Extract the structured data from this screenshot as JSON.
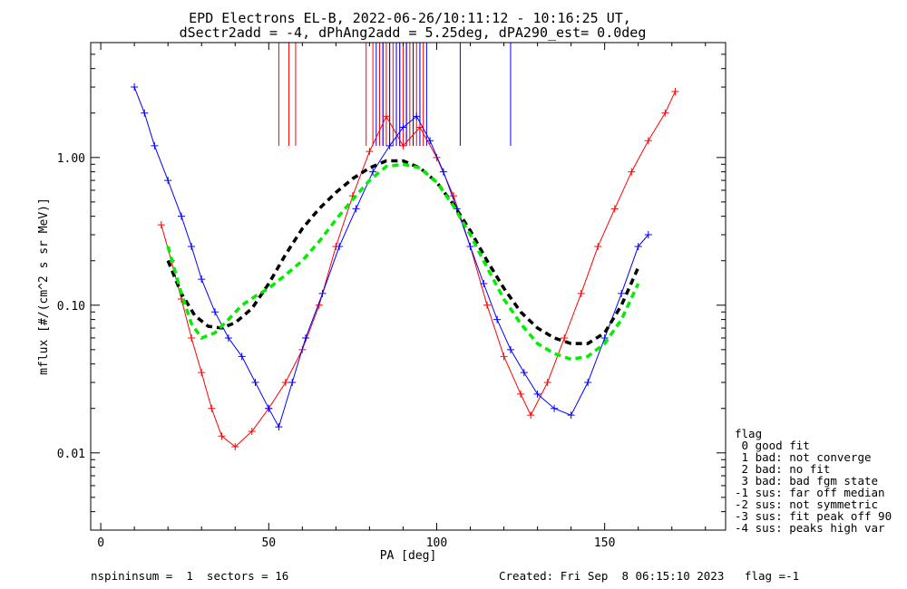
{
  "chart_data": {
    "type": "line",
    "title": "EPD Electrons EL-B, 2022-06-26/10:11:12 - 10:16:25 UT,",
    "subtitle": "dSectr2add = -4, dPhAng2add = 5.25deg, dPA290_est=   0.0deg",
    "xlabel": "PA [deg]",
    "ylabel": "mflux [#/(cm^2 s sr MeV)]",
    "xlim": [
      -3,
      186
    ],
    "ylim": [
      0.003,
      6.0
    ],
    "yscale": "log",
    "grid": false,
    "x_ticks": [
      0,
      50,
      100,
      150
    ],
    "x_tick_labels": [
      "0",
      "50",
      "100",
      "150"
    ],
    "y_ticks": [
      0.01,
      0.1,
      1.0
    ],
    "y_tick_labels": [
      "0.01",
      "0.10",
      "1.00"
    ],
    "series": [
      {
        "color": "#ff0000",
        "style": "thin solid with plus markers",
        "x": [
          18,
          21,
          24,
          27,
          30,
          33,
          36,
          40,
          45,
          50,
          55,
          60,
          65,
          70,
          75,
          80,
          85,
          90,
          95,
          100,
          105,
          110,
          115,
          120,
          125,
          128,
          133,
          138,
          143,
          148,
          153,
          158,
          163,
          168,
          171
        ],
        "y": [
          0.35,
          0.2,
          0.11,
          0.06,
          0.035,
          0.02,
          0.013,
          0.011,
          0.014,
          0.02,
          0.03,
          0.05,
          0.1,
          0.25,
          0.55,
          1.1,
          1.9,
          1.2,
          1.6,
          1.0,
          0.55,
          0.25,
          0.1,
          0.045,
          0.025,
          0.018,
          0.03,
          0.06,
          0.12,
          0.25,
          0.45,
          0.8,
          1.3,
          2.0,
          2.8
        ]
      },
      {
        "color": "#0000ff",
        "style": "thin solid with plus markers",
        "x": [
          10,
          13,
          16,
          20,
          24,
          27,
          30,
          34,
          38,
          42,
          46,
          50,
          53,
          57,
          61,
          66,
          71,
          76,
          81,
          86,
          90,
          94,
          98,
          102,
          106,
          110,
          114,
          118,
          122,
          126,
          130,
          135,
          140,
          145,
          150,
          155,
          160,
          163
        ],
        "y": [
          3.0,
          2.0,
          1.2,
          0.7,
          0.4,
          0.25,
          0.15,
          0.09,
          0.06,
          0.045,
          0.03,
          0.02,
          0.015,
          0.03,
          0.06,
          0.12,
          0.25,
          0.45,
          0.8,
          1.2,
          1.6,
          1.9,
          1.3,
          0.8,
          0.45,
          0.25,
          0.14,
          0.08,
          0.05,
          0.035,
          0.025,
          0.02,
          0.018,
          0.03,
          0.06,
          0.12,
          0.25,
          0.3
        ]
      },
      {
        "color": "#000000",
        "style": "thick dashed",
        "x": [
          20,
          24,
          28,
          32,
          36,
          40,
          45,
          50,
          55,
          60,
          65,
          70,
          75,
          80,
          85,
          90,
          95,
          100,
          105,
          110,
          115,
          120,
          125,
          130,
          135,
          140,
          145,
          150,
          155,
          160
        ],
        "y": [
          0.2,
          0.12,
          0.085,
          0.072,
          0.07,
          0.076,
          0.095,
          0.14,
          0.22,
          0.33,
          0.45,
          0.58,
          0.72,
          0.85,
          0.95,
          0.95,
          0.85,
          0.68,
          0.48,
          0.32,
          0.2,
          0.13,
          0.09,
          0.07,
          0.06,
          0.055,
          0.055,
          0.065,
          0.1,
          0.18
        ]
      },
      {
        "color": "#00ee00",
        "style": "thick dashed",
        "x": [
          20,
          24,
          27,
          30,
          34,
          38,
          42,
          46,
          50,
          55,
          60,
          65,
          70,
          75,
          80,
          85,
          90,
          95,
          100,
          105,
          110,
          115,
          120,
          125,
          130,
          135,
          140,
          145,
          150,
          155,
          160
        ],
        "y": [
          0.25,
          0.12,
          0.075,
          0.06,
          0.065,
          0.08,
          0.1,
          0.115,
          0.13,
          0.16,
          0.2,
          0.27,
          0.38,
          0.52,
          0.7,
          0.87,
          0.9,
          0.85,
          0.68,
          0.47,
          0.3,
          0.18,
          0.11,
          0.075,
          0.055,
          0.047,
          0.043,
          0.045,
          0.055,
          0.08,
          0.14
        ]
      }
    ],
    "vertical_lines": [
      {
        "color": "#ff0000",
        "x": [
          53,
          56,
          58,
          79,
          81,
          83,
          84,
          85,
          86,
          87,
          88,
          89,
          90,
          91,
          92,
          93,
          94,
          95,
          96
        ],
        "y_bottom": 1.2
      },
      {
        "color": "#0000ff",
        "x": [
          82,
          84,
          86,
          88,
          89,
          91,
          93,
          95,
          97,
          107,
          122
        ],
        "y_bottom": 1.2
      }
    ],
    "legend": {
      "placement": "right-bottom outside",
      "title": "flag",
      "entries": [
        " 0 good fit",
        " 1 bad: not converge",
        " 2 bad: no fit",
        " 3 bad: bad fgm state",
        "-1 sus: far off median",
        "-2 sus: not symmetric",
        "-3 sus: fit peak off 90",
        "-4 sus: peaks high var"
      ]
    }
  },
  "footer": {
    "left": "nspininsum =  1  sectors = 16",
    "right": "Created: Fri Sep  8 06:15:10 2023   flag =-1"
  }
}
